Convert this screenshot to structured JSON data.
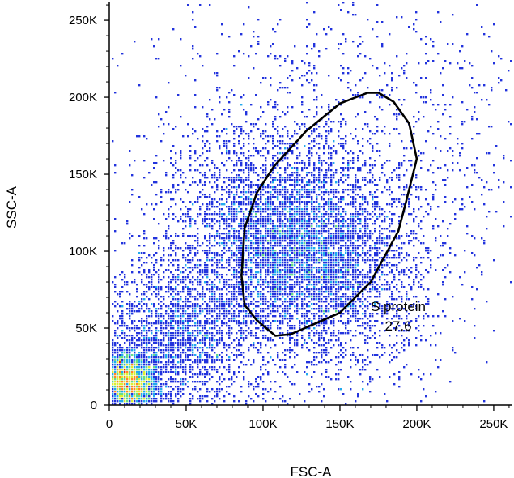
{
  "chart_data": {
    "type": "scatter",
    "subtype": "flow-cytometry-density-plot",
    "xlabel": "FSC-A",
    "ylabel": "SSC-A",
    "xlim": [
      0,
      262144
    ],
    "ylim": [
      0,
      262144
    ],
    "x_ticks": [
      {
        "value": 0,
        "label": "0"
      },
      {
        "value": 50000,
        "label": "50K"
      },
      {
        "value": 100000,
        "label": "100K"
      },
      {
        "value": 150000,
        "label": "150K"
      },
      {
        "value": 200000,
        "label": "200K"
      },
      {
        "value": 250000,
        "label": "250K"
      }
    ],
    "y_ticks": [
      {
        "value": 0,
        "label": "0"
      },
      {
        "value": 50000,
        "label": "50K"
      },
      {
        "value": 100000,
        "label": "100K"
      },
      {
        "value": 150000,
        "label": "150K"
      },
      {
        "value": 200000,
        "label": "200K"
      },
      {
        "value": 250000,
        "label": "250K"
      }
    ],
    "density_colors": [
      "#2233dd",
      "#22aaee",
      "#66dd88",
      "#ddee33",
      "#ff8822",
      "#ee2211"
    ],
    "populations": [
      {
        "center": [
          125000,
          100000
        ],
        "spread": [
          30000,
          38000
        ],
        "rotation_deg": 48,
        "count": 5200
      },
      {
        "center": [
          11000,
          15000
        ],
        "spread": [
          9000,
          11000
        ],
        "rotation_deg": 45,
        "count": 2400
      },
      {
        "center": [
          45000,
          45000
        ],
        "spread": [
          30000,
          25000
        ],
        "rotation_deg": 45,
        "count": 2400
      },
      {
        "center": [
          130000,
          130000
        ],
        "spread": [
          75000,
          60000
        ],
        "rotation_deg": 40,
        "count": 2400
      }
    ],
    "gate": {
      "name": "S protein",
      "value": "27.6",
      "polygon": [
        [
          108000,
          45000
        ],
        [
          118000,
          46000
        ],
        [
          150000,
          60000
        ],
        [
          170000,
          80000
        ],
        [
          188000,
          113000
        ],
        [
          193000,
          132000
        ],
        [
          200000,
          160000
        ],
        [
          195000,
          183000
        ],
        [
          185000,
          197000
        ],
        [
          175000,
          203000
        ],
        [
          168000,
          203000
        ],
        [
          150000,
          196000
        ],
        [
          128000,
          178000
        ],
        [
          107000,
          155000
        ],
        [
          96000,
          138000
        ],
        [
          88000,
          115000
        ],
        [
          86000,
          84000
        ],
        [
          88000,
          65000
        ],
        [
          96000,
          55000
        ]
      ]
    }
  }
}
